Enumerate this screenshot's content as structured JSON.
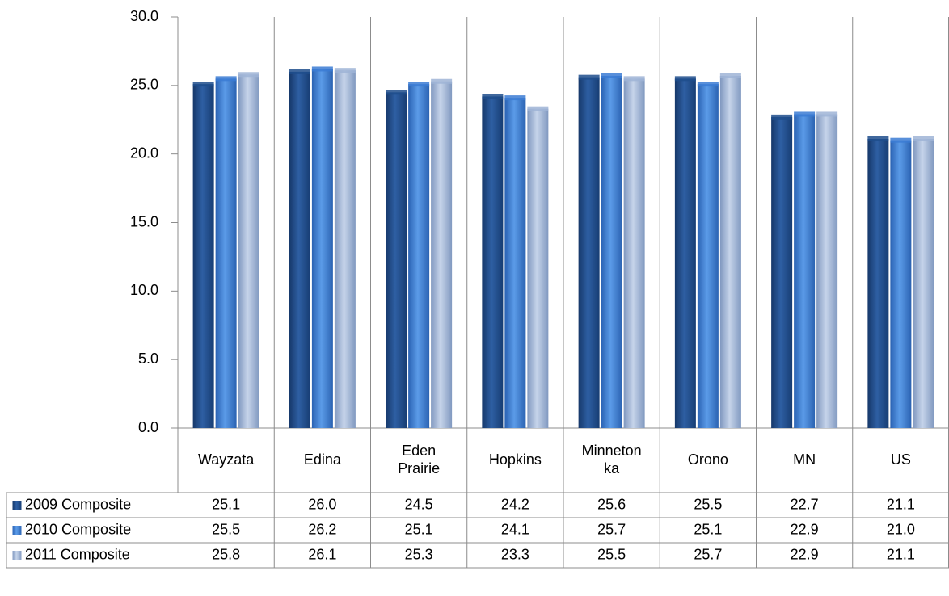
{
  "chart_data": {
    "type": "bar",
    "categories": [
      [
        "Wayzata"
      ],
      [
        "Edina"
      ],
      [
        "Eden",
        "Prairie"
      ],
      [
        "Hopkins"
      ],
      [
        "Minneton",
        "ka"
      ],
      [
        "Orono"
      ],
      [
        "MN"
      ],
      [
        "US"
      ]
    ],
    "series": [
      {
        "name": "2009 Composite",
        "values": [
          25.1,
          26.0,
          24.5,
          24.2,
          25.6,
          25.5,
          22.7,
          21.1
        ],
        "labels": [
          "25.1",
          "26.0",
          "24.5",
          "24.2",
          "25.6",
          "25.5",
          "22.7",
          "21.1"
        ],
        "color": "#1f4e8c"
      },
      {
        "name": "2010 Composite",
        "values": [
          25.5,
          26.2,
          25.1,
          24.1,
          25.7,
          25.1,
          22.9,
          21.0
        ],
        "labels": [
          "25.5",
          "26.2",
          "25.1",
          "24.1",
          "25.7",
          "25.1",
          "22.9",
          "21.0"
        ],
        "color": "#3b7bd4"
      },
      {
        "name": "2011 Composite",
        "values": [
          25.8,
          26.1,
          25.3,
          23.3,
          25.5,
          25.7,
          22.9,
          21.1
        ],
        "labels": [
          "25.8",
          "26.1",
          "25.3",
          "23.3",
          "25.5",
          "25.7",
          "22.9",
          "21.1"
        ],
        "color": "#9fb4d6"
      }
    ],
    "ylim": [
      0,
      30
    ],
    "yticks": [
      "0.0",
      "5.0",
      "10.0",
      "15.0",
      "20.0",
      "25.0",
      "30.0"
    ],
    "grid": "vertical category separators",
    "legend": "data table rows",
    "data_table": true
  }
}
